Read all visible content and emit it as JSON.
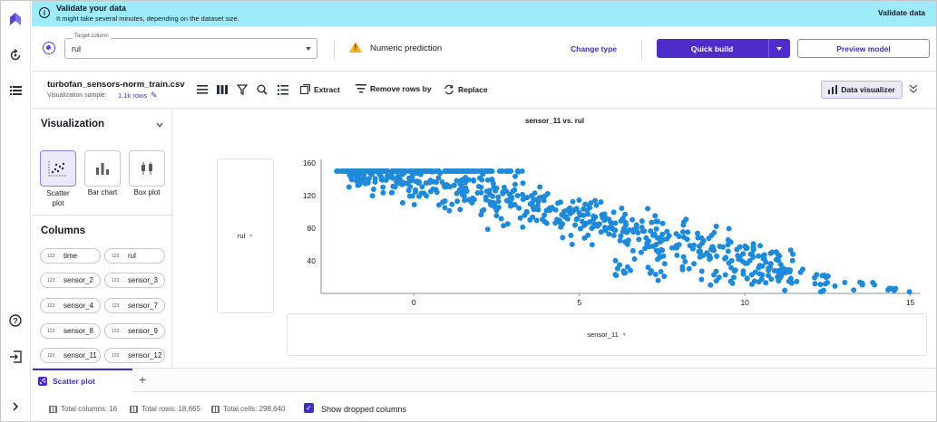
{
  "banner": {
    "title": "Validate your data",
    "subtitle": "It might take several minutes, depending on the dataset size.",
    "action": "Validate data"
  },
  "target": {
    "field_label": "Target column",
    "value": "rul",
    "prediction_type": "Numeric prediction",
    "change_type": "Change type",
    "quick_build": "Quick build",
    "preview_model": "Preview model"
  },
  "dataset": {
    "name": "turbofan_sensors-norm_train.csv",
    "sample_label": "Visualization sample:",
    "sample_rows": "1.1k rows",
    "extract": "Extract",
    "remove_rows": "Remove rows by",
    "replace": "Replace",
    "data_visualizer": "Data visualizer"
  },
  "panel": {
    "title": "Visualization",
    "chart_types": [
      {
        "label": "Scatter plot",
        "line1": "Scatter",
        "line2": "plot"
      },
      {
        "label": "Bar chart"
      },
      {
        "label": "Box plot"
      }
    ],
    "columns_title": "Columns",
    "type_tag": "123",
    "columns": [
      "time",
      "rul",
      "sensor_2",
      "sensor_3",
      "sensor_4",
      "sensor_7",
      "sensor_8",
      "sensor_9",
      "sensor_11",
      "sensor_12"
    ]
  },
  "chart": {
    "y_column": "rul",
    "x_column": "sensor_11"
  },
  "chart_data": {
    "type": "scatter",
    "title": "sensor_11 vs. rul",
    "xlabel": "",
    "ylabel": "",
    "xlim": [
      -2.8,
      15.2
    ],
    "ylim": [
      0,
      160
    ],
    "x_ticks": [
      0,
      5,
      10,
      15
    ],
    "y_ticks": [
      40,
      80,
      120,
      160
    ],
    "color": "#1f8ad9",
    "n_points": 1100
  },
  "bottom": {
    "tab": "Scatter plot",
    "total_columns": "Total columns: 16",
    "total_rows": "Total rows: 18,665",
    "total_cells": "Total cells: 298,640",
    "show_dropped": "Show dropped columns"
  },
  "colors": {
    "accent": "#4d2cc9",
    "banner": "#9eebfc",
    "link": "#3b2ed0",
    "point": "#1f8ad9",
    "warning": "#f2b01e"
  }
}
